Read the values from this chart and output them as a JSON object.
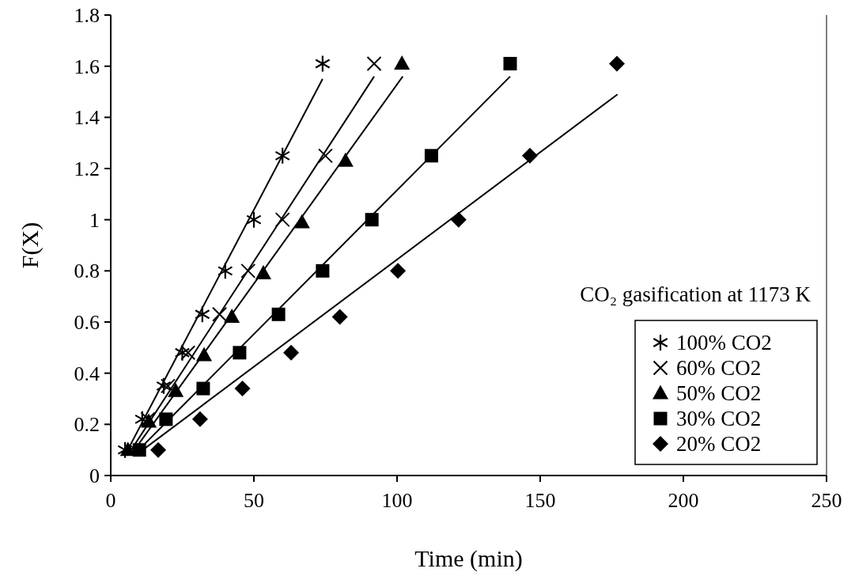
{
  "chart_data": {
    "type": "scatter",
    "xlabel": "Time (min)",
    "ylabel": "F(X)",
    "xlim": [
      0,
      250
    ],
    "xticks": [
      0,
      50,
      100,
      150,
      200,
      250
    ],
    "ylim": [
      0,
      1.8
    ],
    "yticks": [
      0,
      0.2,
      0.4,
      0.6,
      0.8,
      1,
      1.2,
      1.4,
      1.6,
      1.8
    ],
    "grid": false,
    "legend": "bottom right",
    "annotations": [
      "CO₂ gasification at 1173 K"
    ],
    "series": [
      {
        "name": "100% CO2",
        "color": "#000000",
        "x": [
          5,
          11,
          18.5,
          25,
          32,
          40,
          50,
          60,
          74
        ],
        "values": [
          0.1,
          0.22,
          0.35,
          0.48,
          0.63,
          0.8,
          1,
          1.25,
          1.61
        ]
      },
      {
        "name": "60% CO2",
        "color": "#000000",
        "marker": "cross",
        "x": [
          13,
          20,
          27,
          38,
          48,
          60,
          75,
          92
        ],
        "values": [
          0.22,
          0.35,
          0.48,
          0.63,
          0.8,
          1,
          1.25,
          1.61
        ]
      },
      {
        "name": "50% CO2",
        "color": "#000000",
        "marker": "triangle",
        "x": [
          6,
          13.3,
          22.7,
          32.6,
          42.3,
          53.3,
          66.8,
          82,
          101.7
        ],
        "values": [
          0.1,
          0.21,
          0.33,
          0.47,
          0.62,
          0.79,
          0.99,
          1.23,
          1.61
        ]
      },
      {
        "name": "30% CO2",
        "color": "#000000",
        "marker": "square",
        "x": [
          10,
          19.3,
          32.3,
          45,
          58.6,
          74,
          91.2,
          112,
          139.5
        ],
        "values": [
          0.1,
          0.22,
          0.34,
          0.48,
          0.63,
          0.8,
          1,
          1.25,
          1.61
        ]
      },
      {
        "name": "20% CO2",
        "color": "#000000",
        "marker": "diamond",
        "x": [
          16.6,
          31.2,
          46,
          63,
          80,
          100.3,
          121.5,
          146.4,
          176.8
        ],
        "values": [
          0.1,
          0.22,
          0.34,
          0.48,
          0.62,
          0.8,
          1,
          1.25,
          1.61
        ]
      },
      {
        "type": "line",
        "color": "#000000",
        "marker": "none",
        "x": [
          5,
          74
        ],
        "values": [
          0.08,
          1.55
        ]
      },
      {
        "type": "line",
        "color": "#000000",
        "marker": "none",
        "x": [
          6,
          92
        ],
        "values": [
          0.08,
          1.56
        ]
      },
      {
        "type": "line",
        "color": "#000000",
        "marker": "none",
        "x": [
          7,
          102
        ],
        "values": [
          0.08,
          1.56
        ]
      },
      {
        "type": "line",
        "color": "#000000",
        "marker": "none",
        "x": [
          8,
          139.5
        ],
        "values": [
          0.08,
          1.56
        ]
      },
      {
        "type": "line",
        "color": "#000000",
        "marker": "none",
        "x": [
          10,
          177
        ],
        "values": [
          0.09,
          1.49
        ]
      }
    ]
  }
}
